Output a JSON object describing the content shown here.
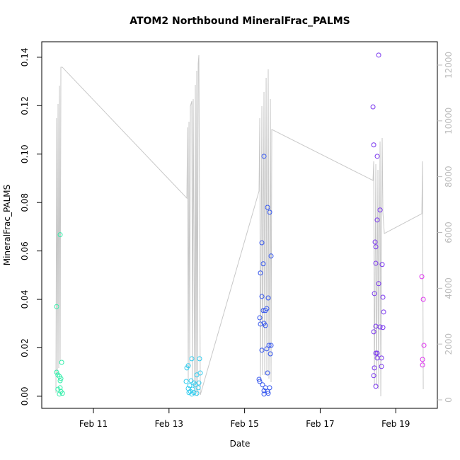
{
  "chart_data": {
    "type": "scatter",
    "title": "ATOM2 Northbound MineralFrac_PALMS",
    "x_label": "Date",
    "y_label": "MineralFrac_PALMS",
    "xlim": [
      9.633,
      20.1
    ],
    "xticks": [
      {
        "value": 11,
        "label": "Feb 11"
      },
      {
        "value": 13,
        "label": "Feb 13"
      },
      {
        "value": 15,
        "label": "Feb 15"
      },
      {
        "value": 17,
        "label": "Feb 17"
      },
      {
        "value": 19,
        "label": "Feb 19"
      }
    ],
    "ylim": [
      -0.005,
      0.1464
    ],
    "yticks": [
      {
        "value": 0,
        "label": "0.00"
      },
      {
        "value": 0.02,
        "label": "0.02"
      },
      {
        "value": 0.04,
        "label": "0.04"
      },
      {
        "value": 0.06,
        "label": "0.06"
      },
      {
        "value": 0.08,
        "label": "0.08"
      },
      {
        "value": 0.1,
        "label": "0.10"
      },
      {
        "value": 0.12,
        "label": "0.12"
      },
      {
        "value": 0.14,
        "label": "0.14"
      }
    ],
    "y2lim": [
      -304,
      12836
    ],
    "y2ticks": [
      0,
      2000,
      4000,
      6000,
      8000,
      10000,
      12000
    ],
    "series": [
      {
        "type": "scatter",
        "color": "#33eeaa",
        "x": [
          10.12,
          10.026,
          10.026,
          10.06,
          10.1,
          10.14,
          10.12,
          10.06,
          10.14,
          10.18,
          10.1,
          10.16,
          10.12
        ],
        "values": [
          0.0667,
          0.037,
          0.0099,
          0.0088,
          0.0082,
          0.0073,
          0.0035,
          0.0029,
          0.002,
          0.0012,
          0.0009,
          0.014,
          0.0064
        ]
      },
      {
        "type": "scatter",
        "color": "#33ccee",
        "x": [
          13.603,
          13.809,
          13.509,
          13.472,
          13.734,
          13.828,
          13.453,
          13.584,
          13.659,
          13.547,
          13.697,
          13.509,
          13.622,
          13.772,
          13.566,
          13.659,
          13.603,
          13.734,
          13.528,
          13.79
        ],
        "values": [
          0.0155,
          0.0155,
          0.0126,
          0.0117,
          0.0088,
          0.0096,
          0.0061,
          0.0064,
          0.0055,
          0.0044,
          0.0047,
          0.0032,
          0.0029,
          0.0035,
          0.002,
          0.0015,
          0.0009,
          0.0012,
          0.0015,
          0.0055
        ]
      },
      {
        "type": "scatter",
        "color": "#3355ee",
        "x": [
          15.513,
          15.457,
          15.494,
          15.419,
          15.607,
          15.663,
          15.7,
          15.457,
          15.625,
          15.494,
          15.551,
          15.588,
          15.401,
          15.419,
          15.513,
          15.551,
          15.644,
          15.7,
          15.457,
          15.588,
          15.682,
          15.607,
          15.382,
          15.401,
          15.476,
          15.551,
          15.663,
          15.513,
          15.607,
          15.513,
          15.625
        ],
        "values": [
          0.0991,
          0.0634,
          0.0547,
          0.0509,
          0.078,
          0.076,
          0.0579,
          0.0412,
          0.0406,
          0.0354,
          0.0354,
          0.0362,
          0.0324,
          0.0298,
          0.0301,
          0.0292,
          0.021,
          0.021,
          0.019,
          0.0196,
          0.0175,
          0.0096,
          0.007,
          0.0061,
          0.0047,
          0.0035,
          0.0035,
          0.0023,
          0.002,
          0.0009,
          0.0012
        ]
      },
      {
        "type": "scatter",
        "color": "#7733ee",
        "x": [
          18.547,
          18.397,
          18.416,
          18.509,
          18.453,
          18.472,
          18.509,
          18.584,
          18.472,
          18.64,
          18.547,
          18.434,
          18.659,
          18.678,
          18.472,
          18.584,
          18.659,
          18.416,
          18.472,
          18.509,
          18.509,
          18.622,
          18.434,
          18.622,
          18.416,
          18.472
        ],
        "values": [
          0.1409,
          0.1195,
          0.1038,
          0.0991,
          0.0637,
          0.0617,
          0.0728,
          0.0769,
          0.0549,
          0.0544,
          0.0465,
          0.0424,
          0.0409,
          0.0348,
          0.0289,
          0.0286,
          0.0284,
          0.0266,
          0.0178,
          0.0178,
          0.0158,
          0.0158,
          0.0117,
          0.0123,
          0.0085,
          0.0041
        ]
      },
      {
        "type": "scatter",
        "color": "#dd33ee",
        "x": [
          19.689,
          19.727,
          19.745,
          19.708,
          19.708
        ],
        "values": [
          0.0494,
          0.04,
          0.021,
          0.0152,
          0.0129
        ]
      },
      {
        "type": "line",
        "axis": "y2",
        "color": "#c8c8c8",
        "x": [
          10.008,
          10.026,
          10.045,
          10.064,
          10.082,
          10.101,
          10.12,
          10.139,
          10.176,
          13.472,
          13.491,
          13.509,
          13.528,
          13.547,
          13.566,
          13.603,
          13.622,
          13.64,
          13.678,
          13.697,
          13.715,
          13.734,
          13.753,
          13.772,
          13.79,
          13.828,
          15.382,
          15.401,
          15.419,
          15.457,
          15.476,
          15.513,
          15.532,
          15.57,
          15.588,
          15.625,
          15.644,
          15.682,
          15.7,
          15.719,
          18.397,
          18.416,
          18.434,
          18.472,
          18.491,
          18.528,
          18.547,
          18.584,
          18.603,
          18.64,
          18.659,
          18.697,
          19.689,
          19.708,
          19.727
        ],
        "values": [
          254,
          10097,
          888,
          10604,
          1142,
          11264,
          1395,
          11924,
          11924,
          7230,
          9767,
          634,
          9970,
          1142,
          10529,
          10706,
          634,
          10782,
          127,
          11290,
          254,
          11797,
          127,
          12051,
          12355,
          178,
          7484,
          10097,
          634,
          10529,
          888,
          11036,
          888,
          11543,
          888,
          11848,
          761,
          10782,
          634,
          9691,
          7865,
          8550,
          507,
          8448,
          507,
          8245,
          381,
          9260,
          127,
          9387,
          6723,
          5962,
          6672,
          8550,
          381
        ]
      }
    ]
  }
}
